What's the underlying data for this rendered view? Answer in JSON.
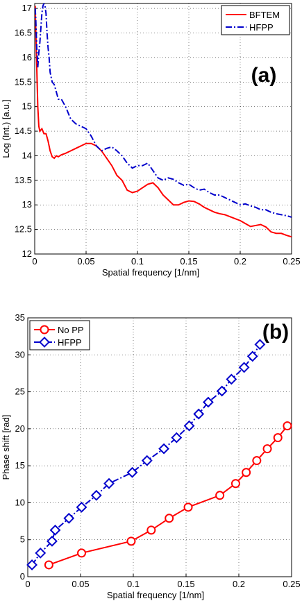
{
  "chart_data": [
    {
      "type": "line",
      "panel_label": "(a)",
      "xlabel": "Spatial frequency [1/nm]",
      "ylabel": "Log (Int.) [a.u.]",
      "xlim": [
        0,
        0.25
      ],
      "ylim": [
        12,
        17.1
      ],
      "xticks": [
        "0",
        "0.05",
        "0.1",
        "0.15",
        "0.2",
        "0.25"
      ],
      "yticks": [
        "12",
        "12.5",
        "13",
        "13.5",
        "14",
        "14.5",
        "15",
        "15.5",
        "16",
        "16.5",
        "17"
      ],
      "grid": "on",
      "legend": "top-right",
      "series": [
        {
          "name": "BFTEM",
          "color": "#ff0000",
          "style": "solid",
          "x": [
            0.0005,
            0.001,
            0.002,
            0.003,
            0.004,
            0.005,
            0.007,
            0.009,
            0.011,
            0.013,
            0.015,
            0.017,
            0.019,
            0.021,
            0.023,
            0.026,
            0.03,
            0.035,
            0.04,
            0.045,
            0.05,
            0.055,
            0.06,
            0.065,
            0.07,
            0.075,
            0.08,
            0.085,
            0.09,
            0.095,
            0.1,
            0.105,
            0.11,
            0.115,
            0.12,
            0.125,
            0.13,
            0.135,
            0.14,
            0.145,
            0.15,
            0.155,
            0.16,
            0.165,
            0.17,
            0.175,
            0.18,
            0.185,
            0.19,
            0.195,
            0.2,
            0.205,
            0.21,
            0.215,
            0.22,
            0.225,
            0.23,
            0.235,
            0.24,
            0.245,
            0.25
          ],
          "y": [
            17.05,
            16.6,
            15.8,
            15.0,
            14.6,
            14.5,
            14.55,
            14.45,
            14.45,
            14.3,
            14.1,
            13.98,
            13.95,
            14.0,
            13.98,
            14.02,
            14.05,
            14.1,
            14.15,
            14.2,
            14.25,
            14.25,
            14.2,
            14.1,
            13.95,
            13.8,
            13.6,
            13.5,
            13.3,
            13.25,
            13.28,
            13.35,
            13.42,
            13.45,
            13.35,
            13.2,
            13.1,
            13.0,
            13.0,
            13.05,
            13.08,
            13.07,
            13.02,
            12.95,
            12.9,
            12.85,
            12.82,
            12.8,
            12.76,
            12.72,
            12.68,
            12.62,
            12.56,
            12.58,
            12.6,
            12.55,
            12.45,
            12.42,
            12.42,
            12.38,
            12.35
          ]
        },
        {
          "name": "HFPP",
          "color": "#0000cc",
          "style": "dashdot",
          "x": [
            0.0005,
            0.001,
            0.002,
            0.003,
            0.004,
            0.005,
            0.006,
            0.007,
            0.008,
            0.009,
            0.01,
            0.011,
            0.012,
            0.013,
            0.014,
            0.015,
            0.017,
            0.019,
            0.021,
            0.023,
            0.026,
            0.03,
            0.035,
            0.04,
            0.045,
            0.05,
            0.055,
            0.06,
            0.065,
            0.07,
            0.075,
            0.08,
            0.085,
            0.09,
            0.095,
            0.1,
            0.105,
            0.11,
            0.115,
            0.12,
            0.125,
            0.13,
            0.135,
            0.14,
            0.145,
            0.15,
            0.155,
            0.16,
            0.165,
            0.17,
            0.175,
            0.18,
            0.185,
            0.19,
            0.195,
            0.2,
            0.205,
            0.21,
            0.215,
            0.22,
            0.225,
            0.23,
            0.235,
            0.24,
            0.245,
            0.25
          ],
          "y": [
            17.0,
            16.8,
            16.2,
            15.8,
            16.1,
            16.3,
            16.6,
            16.9,
            17.05,
            17.1,
            17.05,
            16.9,
            16.5,
            16.2,
            16.0,
            15.7,
            15.5,
            15.45,
            15.3,
            15.15,
            15.15,
            15.0,
            14.75,
            14.65,
            14.6,
            14.55,
            14.4,
            14.2,
            14.1,
            14.15,
            14.18,
            14.1,
            14.0,
            13.85,
            13.75,
            13.8,
            13.8,
            13.85,
            13.7,
            13.55,
            13.5,
            13.55,
            13.52,
            13.45,
            13.4,
            13.42,
            13.35,
            13.3,
            13.32,
            13.25,
            13.2,
            13.2,
            13.15,
            13.1,
            13.05,
            13.0,
            13.02,
            12.98,
            12.95,
            12.9,
            12.9,
            12.85,
            12.82,
            12.8,
            12.78,
            12.75
          ]
        }
      ]
    },
    {
      "type": "line",
      "panel_label": "(b)",
      "xlabel": "Spatial frequency [1/nm]",
      "ylabel": "Phase shift [rad]",
      "xlim": [
        0,
        0.25
      ],
      "ylim": [
        0,
        35
      ],
      "xticks": [
        "0",
        "0.05",
        "0.1",
        "0.15",
        "0.2",
        "0.25"
      ],
      "yticks": [
        "0",
        "5",
        "10",
        "15",
        "20",
        "25",
        "30",
        "35"
      ],
      "grid": "on",
      "legend": "top-left",
      "series": [
        {
          "name": "No PP",
          "color": "#ff0000",
          "style": "solid",
          "marker": "circle",
          "x": [
            0.02,
            0.051,
            0.098,
            0.117,
            0.134,
            0.152,
            0.182,
            0.197,
            0.207,
            0.217,
            0.227,
            0.237,
            0.246
          ],
          "y": [
            1.6,
            3.2,
            4.8,
            6.3,
            7.9,
            9.4,
            11.0,
            12.6,
            14.1,
            15.7,
            17.3,
            18.8,
            20.4
          ]
        },
        {
          "name": "HFPP",
          "color": "#0000cc",
          "style": "dashdot",
          "marker": "diamond",
          "x": [
            0.004,
            0.012,
            0.023,
            0.026,
            0.039,
            0.051,
            0.065,
            0.077,
            0.099,
            0.113,
            0.129,
            0.141,
            0.153,
            0.162,
            0.171,
            0.184,
            0.193,
            0.205,
            0.213,
            0.22
          ],
          "y": [
            1.6,
            3.2,
            4.8,
            6.3,
            7.9,
            9.4,
            11.0,
            12.6,
            14.1,
            15.7,
            17.3,
            18.8,
            20.4,
            22.0,
            23.6,
            25.1,
            26.7,
            28.3,
            29.8,
            31.4
          ]
        }
      ]
    }
  ]
}
